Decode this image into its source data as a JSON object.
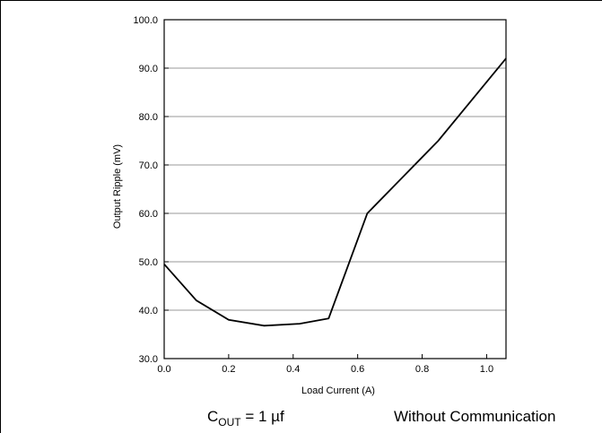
{
  "chart_data": {
    "type": "line",
    "title": "",
    "xlabel": "Load Current (A)",
    "ylabel": "Output Ripple (mV)",
    "xlim": [
      0.0,
      1.06
    ],
    "ylim": [
      30.0,
      100.0
    ],
    "x_ticks": [
      "0.0",
      "0.2",
      "0.4",
      "0.6",
      "0.8",
      "1.0"
    ],
    "y_ticks": [
      "30.0",
      "40.0",
      "50.0",
      "60.0",
      "70.0",
      "80.0",
      "90.0",
      "100.0"
    ],
    "grid": "horizontal",
    "series": [
      {
        "x": [
          0.0,
          0.1,
          0.2,
          0.31,
          0.42,
          0.51,
          0.63,
          0.85,
          1.06
        ],
        "y": [
          49.5,
          42.0,
          38.0,
          36.8,
          37.2,
          38.3,
          60.0,
          75.0,
          92.0
        ]
      }
    ]
  },
  "footer": {
    "left_main": "C",
    "left_sub": "OUT",
    "left_rest": " = 1 µf",
    "right": "Without Communication"
  },
  "colors": {
    "line": "#000000",
    "grid": "#999999",
    "axis": "#000000"
  }
}
